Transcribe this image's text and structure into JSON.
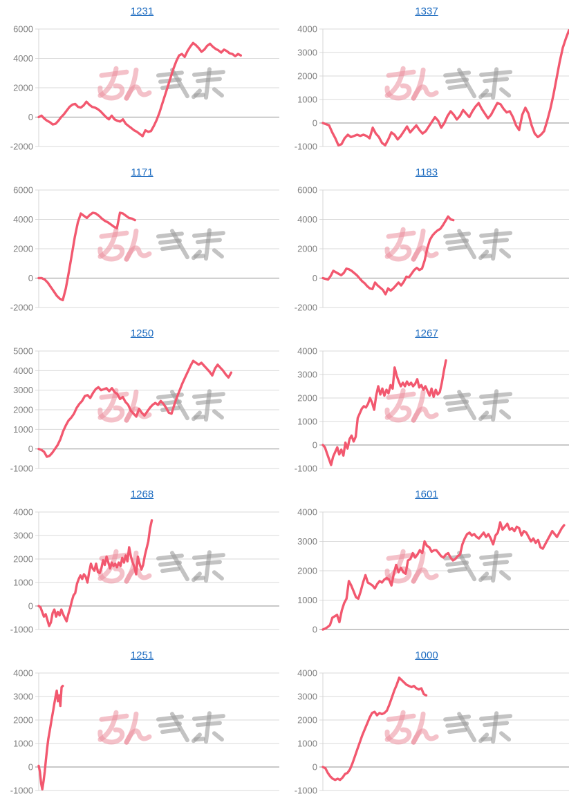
{
  "page": {
    "background": "#ffffff",
    "watermark": {
      "text": "みんレポ",
      "pink_part": "みん",
      "gray_part": "レポ",
      "pink_color": "#eb8e9c",
      "gray_color": "#9b9b9b"
    },
    "colors": {
      "series_line": "#f2586f",
      "grid_line": "#d9d9d9",
      "zero_line": "#a6a6a6",
      "tick_text": "#7f7f7f",
      "title_link": "#1c6bc0"
    }
  },
  "chart_data": [
    {
      "type": "line",
      "title": "1231",
      "title_is_link": true,
      "legend": "none",
      "grid": "horizontal",
      "xlabel": "",
      "ylabel": "",
      "x_tick_labels_visible": false,
      "ylim": [
        -2000,
        6000
      ],
      "ytick_step": 2000,
      "ytick_labels": [
        "6000",
        "4000",
        "2000",
        "0",
        "-2000"
      ],
      "span": 0.84,
      "values": [
        0,
        100,
        -100,
        -250,
        -350,
        -500,
        -450,
        -250,
        0,
        200,
        450,
        700,
        850,
        900,
        700,
        650,
        800,
        1050,
        850,
        700,
        650,
        550,
        400,
        200,
        0,
        -150,
        100,
        -150,
        -250,
        -300,
        -150,
        -450,
        -600,
        -750,
        -900,
        -1000,
        -1150,
        -1300,
        -900,
        -1000,
        -950,
        -600,
        -200,
        300,
        900,
        1500,
        2100,
        2700,
        3300,
        3800,
        4200,
        4300,
        4100,
        4500,
        4800,
        5050,
        4900,
        4700,
        4450,
        4600,
        4850,
        5000,
        4800,
        4650,
        4550,
        4400,
        4600,
        4500,
        4350,
        4300,
        4150,
        4300,
        4200
      ]
    },
    {
      "type": "line",
      "title": "1337",
      "title_is_link": true,
      "legend": "none",
      "grid": "horizontal",
      "xlabel": "",
      "ylabel": "",
      "x_tick_labels_visible": false,
      "ylim": [
        -1000,
        4000
      ],
      "ytick_step": 1000,
      "ytick_labels": [
        "4000",
        "3000",
        "2000",
        "1000",
        "0",
        "-1000"
      ],
      "span": 1.0,
      "values": [
        0,
        -50,
        -100,
        -400,
        -650,
        -950,
        -900,
        -650,
        -500,
        -600,
        -550,
        -500,
        -550,
        -500,
        -550,
        -650,
        -200,
        -450,
        -600,
        -850,
        -950,
        -700,
        -400,
        -500,
        -700,
        -550,
        -350,
        -150,
        -400,
        -250,
        -100,
        -300,
        -450,
        -350,
        -150,
        50,
        250,
        100,
        -200,
        0,
        300,
        500,
        350,
        150,
        300,
        550,
        400,
        250,
        500,
        700,
        850,
        600,
        400,
        200,
        350,
        600,
        850,
        800,
        600,
        450,
        500,
        250,
        -100,
        -300,
        350,
        650,
        400,
        -100,
        -450,
        -600,
        -500,
        -350,
        100,
        600,
        1200,
        1900,
        2600,
        3200,
        3600,
        3950
      ]
    },
    {
      "type": "line",
      "title": "1171",
      "title_is_link": true,
      "legend": "none",
      "grid": "horizontal",
      "xlabel": "",
      "ylabel": "",
      "x_tick_labels_visible": false,
      "ylim": [
        -2000,
        6000
      ],
      "ytick_step": 2000,
      "ytick_labels": [
        "6000",
        "4000",
        "2000",
        "0",
        "-2000"
      ],
      "span": 0.4,
      "values": [
        0,
        0,
        -100,
        -300,
        -600,
        -900,
        -1200,
        -1400,
        -1500,
        -700,
        400,
        1600,
        2800,
        3800,
        4400,
        4250,
        4100,
        4300,
        4450,
        4400,
        4250,
        4050,
        3900,
        3800,
        3650,
        3500,
        3400,
        4450,
        4400,
        4250,
        4100,
        4050,
        3950
      ]
    },
    {
      "type": "line",
      "title": "1183",
      "title_is_link": true,
      "legend": "none",
      "grid": "horizontal",
      "xlabel": "",
      "ylabel": "",
      "x_tick_labels_visible": false,
      "ylim": [
        -2000,
        6000
      ],
      "ytick_step": 2000,
      "ytick_labels": [
        "6000",
        "4000",
        "2000",
        "0",
        "-2000"
      ],
      "span": 0.53,
      "values": [
        0,
        -50,
        -100,
        150,
        500,
        400,
        300,
        200,
        350,
        650,
        600,
        500,
        350,
        200,
        0,
        -200,
        -350,
        -550,
        -700,
        -750,
        -300,
        -500,
        -650,
        -800,
        -1100,
        -700,
        -850,
        -700,
        -500,
        -300,
        -500,
        -250,
        100,
        50,
        300,
        550,
        700,
        550,
        650,
        1200,
        2000,
        2600,
        2900,
        3100,
        3250,
        3350,
        3600,
        3900,
        4200,
        4000,
        3950
      ]
    },
    {
      "type": "line",
      "title": "1250",
      "title_is_link": true,
      "legend": "none",
      "grid": "horizontal",
      "xlabel": "",
      "ylabel": "",
      "x_tick_labels_visible": false,
      "ylim": [
        -1000,
        5000
      ],
      "ytick_step": 1000,
      "ytick_labels": [
        "5000",
        "4000",
        "3000",
        "2000",
        "1000",
        "0",
        "-1000"
      ],
      "span": 0.8,
      "values": [
        0,
        -50,
        -150,
        -400,
        -350,
        -200,
        0,
        200,
        500,
        900,
        1200,
        1450,
        1600,
        1800,
        2100,
        2300,
        2450,
        2700,
        2750,
        2600,
        2850,
        3050,
        3150,
        3000,
        3050,
        3100,
        2950,
        3100,
        2900,
        2800,
        2550,
        2650,
        2400,
        2250,
        1950,
        1800,
        1650,
        2050,
        1850,
        1700,
        1900,
        2100,
        2250,
        2350,
        2250,
        2450,
        2300,
        2100,
        1850,
        1800,
        2250,
        2650,
        3000,
        3350,
        3650,
        3950,
        4250,
        4500,
        4400,
        4300,
        4400,
        4250,
        4100,
        3950,
        3750,
        4100,
        4300,
        4150,
        4000,
        3800,
        3650,
        3900
      ]
    },
    {
      "type": "line",
      "title": "1267",
      "title_is_link": true,
      "legend": "none",
      "grid": "horizontal",
      "xlabel": "",
      "ylabel": "",
      "x_tick_labels_visible": false,
      "ylim": [
        -1000,
        4000
      ],
      "ytick_step": 1000,
      "ytick_labels": [
        "4000",
        "3000",
        "2000",
        "1000",
        "0",
        "-1000"
      ],
      "span": 0.5,
      "values": [
        0,
        -100,
        -350,
        -600,
        -850,
        -500,
        -300,
        -100,
        -400,
        -200,
        -450,
        100,
        -150,
        250,
        400,
        150,
        350,
        1150,
        1350,
        1550,
        1650,
        1600,
        1750,
        2000,
        1800,
        1500,
        2100,
        2500,
        2150,
        2400,
        2100,
        2350,
        2200,
        2550,
        2400,
        3300,
        2950,
        2700,
        2500,
        2650,
        2500,
        2700,
        2550,
        2650,
        2500,
        2600,
        2800,
        2450,
        2550,
        2350,
        2500,
        2300,
        2100,
        2400,
        2050,
        2350,
        2150,
        2250,
        2650,
        3150,
        3600
      ]
    },
    {
      "type": "line",
      "title": "1268",
      "title_is_link": true,
      "legend": "none",
      "grid": "horizontal",
      "xlabel": "",
      "ylabel": "",
      "x_tick_labels_visible": false,
      "ylim": [
        -1000,
        4000
      ],
      "ytick_step": 1000,
      "ytick_labels": [
        "4000",
        "3000",
        "2000",
        "1000",
        "0",
        "-1000"
      ],
      "span": 0.47,
      "values": [
        0,
        -50,
        -250,
        -450,
        -350,
        -600,
        -850,
        -700,
        -300,
        -150,
        -450,
        -250,
        -400,
        -150,
        -350,
        -500,
        -650,
        -350,
        -100,
        200,
        450,
        550,
        950,
        1150,
        1300,
        1150,
        1350,
        1250,
        1000,
        1450,
        1800,
        1600,
        1500,
        1800,
        1450,
        1400,
        1600,
        1950,
        1750,
        2100,
        1850,
        1600,
        1850,
        1700,
        1800,
        1650,
        1850,
        1700,
        2050,
        1850,
        2150,
        1900,
        2500,
        2100,
        1850,
        1650,
        1350,
        2100,
        1800,
        1550,
        1750,
        2150,
        2450,
        2750,
        3300,
        3650
      ]
    },
    {
      "type": "line",
      "title": "1601",
      "title_is_link": true,
      "legend": "none",
      "grid": "horizontal",
      "xlabel": "",
      "ylabel": "",
      "x_tick_labels_visible": false,
      "ylim": [
        0,
        4000
      ],
      "ytick_step": 1000,
      "ytick_labels": [
        "4000",
        "3000",
        "2000",
        "1000",
        "0"
      ],
      "span": 0.98,
      "values": [
        0,
        30,
        80,
        150,
        400,
        450,
        500,
        250,
        650,
        900,
        1050,
        1650,
        1500,
        1300,
        1100,
        1050,
        1300,
        1600,
        1850,
        1600,
        1550,
        1500,
        1400,
        1550,
        1650,
        1600,
        1700,
        1750,
        1700,
        1500,
        1900,
        2200,
        1950,
        2100,
        1950,
        1900,
        2350,
        2400,
        2600,
        2450,
        2550,
        2700,
        2600,
        3000,
        2850,
        2800,
        2650,
        2700,
        2700,
        2600,
        2500,
        2450,
        2550,
        2600,
        2450,
        2350,
        2400,
        2500,
        2550,
        2900,
        3100,
        3250,
        3300,
        3200,
        3250,
        3150,
        3100,
        3200,
        3300,
        3150,
        3250,
        3100,
        2900,
        3200,
        3300,
        3650,
        3400,
        3500,
        3600,
        3400,
        3450,
        3350,
        3500,
        3450,
        3200,
        3350,
        3300,
        3150,
        3000,
        3100,
        2950,
        3050,
        2800,
        2750,
        2900,
        3050,
        3200,
        3350,
        3250,
        3150,
        3300,
        3450,
        3550
      ]
    },
    {
      "type": "line",
      "title": "1251",
      "title_is_link": true,
      "legend": "none",
      "grid": "horizontal",
      "xlabel": "",
      "ylabel": "",
      "x_tick_labels_visible": false,
      "ylim": [
        -1000,
        4000
      ],
      "ytick_step": 1000,
      "ytick_labels": [
        "4000",
        "3000",
        "2000",
        "1000",
        "0",
        "-1000"
      ],
      "span": 0.1,
      "values": [
        50,
        -200,
        -700,
        -950,
        -600,
        -200,
        300,
        800,
        1200,
        1500,
        1800,
        2100,
        2400,
        2700,
        3000,
        3250,
        2800,
        3050,
        2600,
        3400,
        3450
      ]
    },
    {
      "type": "line",
      "title": "1000",
      "title_is_link": true,
      "legend": "none",
      "grid": "horizontal",
      "xlabel": "",
      "ylabel": "",
      "x_tick_labels_visible": false,
      "ylim": [
        -1000,
        4000
      ],
      "ytick_step": 1000,
      "ytick_labels": [
        "4000",
        "3000",
        "2000",
        "1000",
        "0",
        "-1000"
      ],
      "span": 0.42,
      "values": [
        0,
        -50,
        -250,
        -400,
        -500,
        -550,
        -500,
        -550,
        -450,
        -300,
        -250,
        -100,
        150,
        450,
        750,
        1050,
        1350,
        1600,
        1850,
        2100,
        2300,
        2350,
        2200,
        2300,
        2250,
        2300,
        2400,
        2650,
        2950,
        3250,
        3500,
        3800,
        3700,
        3600,
        3500,
        3450,
        3400,
        3450,
        3350,
        3300,
        3350,
        3100,
        3050
      ]
    }
  ]
}
